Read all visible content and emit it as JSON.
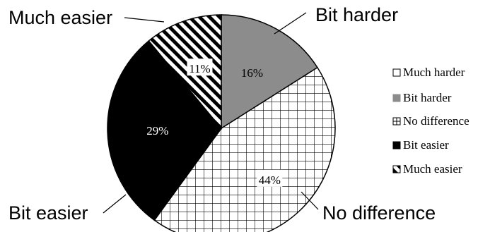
{
  "chart_data": {
    "type": "pie",
    "title": "",
    "slices": [
      {
        "label": "Much harder",
        "value": 0,
        "display": "",
        "fill_pattern": "none",
        "color": "#ffffff"
      },
      {
        "label": "Bit harder",
        "value": 16,
        "display": "16%",
        "fill_pattern": "solid",
        "color": "#8c8c8c"
      },
      {
        "label": "No difference",
        "value": 44,
        "display": "44%",
        "fill_pattern": "grid",
        "color": "#000000"
      },
      {
        "label": "Bit easier",
        "value": 29,
        "display": "29%",
        "fill_pattern": "solid",
        "color": "#000000"
      },
      {
        "label": "Much easier",
        "value": 11,
        "display": "11%",
        "fill_pattern": "diagonal",
        "color": "#000000"
      }
    ],
    "legend": {
      "position": "right",
      "entries": [
        "Much harder",
        "Bit harder",
        "No difference",
        "Bit easier",
        "Much easier"
      ]
    },
    "callouts": [
      "Much easier",
      "Bit harder",
      "Bit easier",
      "No difference"
    ]
  }
}
